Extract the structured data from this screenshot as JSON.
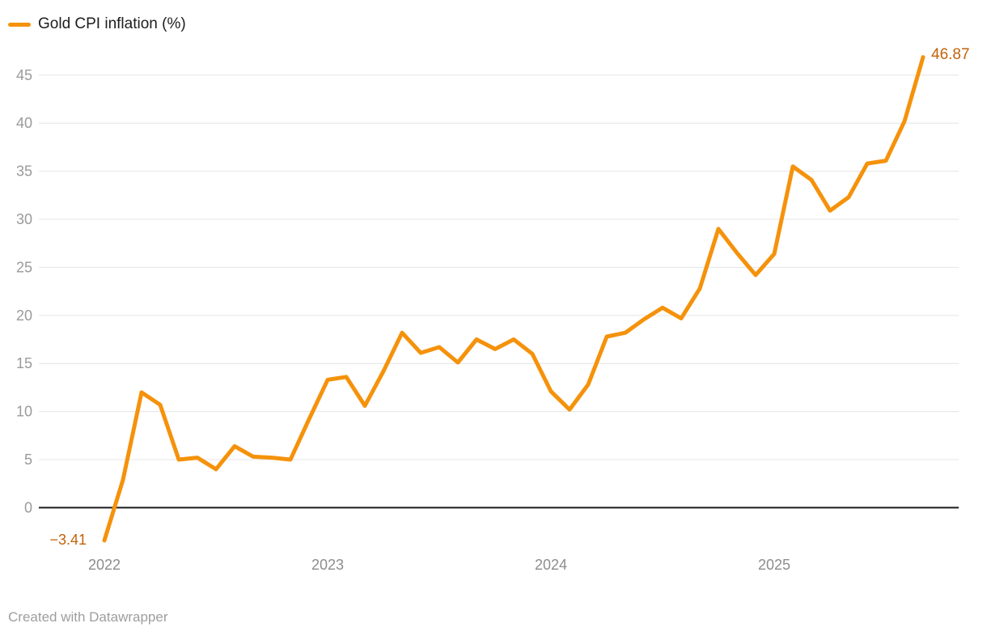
{
  "legend": {
    "label": "Gold CPI inflation (%)"
  },
  "footer": {
    "credit": "Created with Datawrapper"
  },
  "colors": {
    "line": "#F5920B",
    "annotation": "#C2620A",
    "grid": "#e4e4e4",
    "zero_line": "#1a1a1a",
    "y_tick_text": "#9a9a9a",
    "x_tick_text": "#8d8d8d",
    "legend_text": "#1d1d1d",
    "footer_text": "#9e9e9e"
  },
  "chart_data": {
    "type": "line",
    "title": "Gold CPI inflation (%)",
    "xlabel": "",
    "ylabel": "",
    "grid": "horizontal",
    "legend_position": "top-left",
    "ylim": [
      -5,
      47
    ],
    "yticks": [
      0,
      5,
      10,
      15,
      20,
      25,
      30,
      35,
      40,
      45
    ],
    "x_year_ticks": [
      "2022",
      "2023",
      "2024",
      "2025"
    ],
    "start_label": "−3.41",
    "end_label": "46.87",
    "series": [
      {
        "name": "Gold CPI inflation (%)",
        "months": [
          "2022-01",
          "2022-02",
          "2022-03",
          "2022-04",
          "2022-05",
          "2022-06",
          "2022-07",
          "2022-08",
          "2022-09",
          "2022-10",
          "2022-11",
          "2022-12",
          "2023-01",
          "2023-02",
          "2023-03",
          "2023-04",
          "2023-05",
          "2023-06",
          "2023-07",
          "2023-08",
          "2023-09",
          "2023-10",
          "2023-11",
          "2023-12",
          "2024-01",
          "2024-02",
          "2024-03",
          "2024-04",
          "2024-05",
          "2024-06",
          "2024-07",
          "2024-08",
          "2024-09",
          "2024-10",
          "2024-11",
          "2024-12",
          "2025-01",
          "2025-02",
          "2025-03",
          "2025-04",
          "2025-05",
          "2025-06",
          "2025-07",
          "2025-08",
          "2025-09"
        ],
        "values": [
          -3.41,
          2.9,
          12.0,
          10.7,
          5.0,
          5.2,
          4.0,
          6.4,
          5.3,
          5.2,
          5.0,
          9.2,
          13.3,
          13.6,
          10.6,
          14.2,
          18.2,
          16.1,
          16.7,
          15.1,
          17.5,
          16.5,
          17.5,
          16.0,
          12.1,
          10.2,
          12.8,
          17.8,
          18.2,
          19.6,
          20.8,
          19.7,
          22.8,
          29.0,
          26.5,
          24.2,
          26.4,
          35.5,
          34.1,
          30.9,
          32.3,
          35.8,
          36.1,
          40.2,
          46.87
        ]
      }
    ]
  }
}
